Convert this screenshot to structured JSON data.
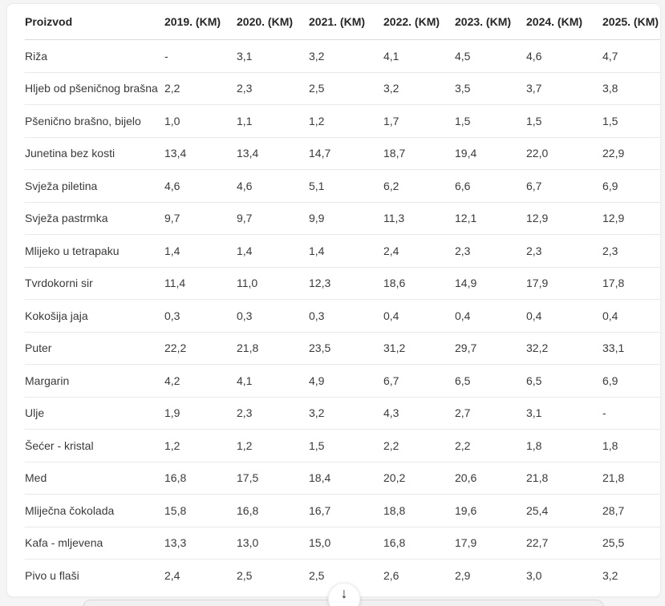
{
  "chart_data": {
    "type": "table",
    "columns": [
      "Proizvod",
      "2019. (KM)",
      "2020. (KM)",
      "2021. (KM)",
      "2022. (KM)",
      "2023. (KM)",
      "2024. (KM)",
      "2025. (KM)"
    ],
    "rows": [
      {
        "product": "Riža",
        "values": [
          "-",
          "3,1",
          "3,2",
          "4,1",
          "4,5",
          "4,6",
          "4,7"
        ]
      },
      {
        "product": "Hljeb od pšeničnog brašna",
        "values": [
          "2,2",
          "2,3",
          "2,5",
          "3,2",
          "3,5",
          "3,7",
          "3,8"
        ]
      },
      {
        "product": "Pšenično brašno, bijelo",
        "values": [
          "1,0",
          "1,1",
          "1,2",
          "1,7",
          "1,5",
          "1,5",
          "1,5"
        ]
      },
      {
        "product": "Junetina bez kosti",
        "values": [
          "13,4",
          "13,4",
          "14,7",
          "18,7",
          "19,4",
          "22,0",
          "22,9"
        ]
      },
      {
        "product": "Svježa piletina",
        "values": [
          "4,6",
          "4,6",
          "5,1",
          "6,2",
          "6,6",
          "6,7",
          "6,9"
        ]
      },
      {
        "product": "Svježa pastrmka",
        "values": [
          "9,7",
          "9,7",
          "9,9",
          "11,3",
          "12,1",
          "12,9",
          "12,9"
        ]
      },
      {
        "product": "Mlijeko u tetrapaku",
        "values": [
          "1,4",
          "1,4",
          "1,4",
          "2,4",
          "2,3",
          "2,3",
          "2,3"
        ]
      },
      {
        "product": "Tvrdokorni sir",
        "values": [
          "11,4",
          "11,0",
          "12,3",
          "18,6",
          "14,9",
          "17,9",
          "17,8"
        ]
      },
      {
        "product": "Kokošija jaja",
        "values": [
          "0,3",
          "0,3",
          "0,3",
          "0,4",
          "0,4",
          "0,4",
          "0,4"
        ]
      },
      {
        "product": "Puter",
        "values": [
          "22,2",
          "21,8",
          "23,5",
          "31,2",
          "29,7",
          "32,2",
          "33,1"
        ]
      },
      {
        "product": "Margarin",
        "values": [
          "4,2",
          "4,1",
          "4,9",
          "6,7",
          "6,5",
          "6,5",
          "6,9"
        ]
      },
      {
        "product": "Ulje",
        "values": [
          "1,9",
          "2,3",
          "3,2",
          "4,3",
          "2,7",
          "3,1",
          "-"
        ]
      },
      {
        "product": "Šećer - kristal",
        "values": [
          "1,2",
          "1,2",
          "1,5",
          "2,2",
          "2,2",
          "1,8",
          "1,8"
        ]
      },
      {
        "product": "Med",
        "values": [
          "16,8",
          "17,5",
          "18,4",
          "20,2",
          "20,6",
          "21,8",
          "21,8"
        ]
      },
      {
        "product": "Mliječna čokolada",
        "values": [
          "15,8",
          "16,8",
          "16,7",
          "18,8",
          "19,6",
          "25,4",
          "28,7"
        ]
      },
      {
        "product": "Kafa - mljevena",
        "values": [
          "13,3",
          "13,0",
          "15,0",
          "16,8",
          "17,9",
          "22,7",
          "25,5"
        ]
      },
      {
        "product": "Pivo u flaši",
        "values": [
          "2,4",
          "2,5",
          "2,5",
          "2,6",
          "2,9",
          "3,0",
          "3,2"
        ]
      }
    ]
  },
  "scroll_button": {
    "icon": "arrow-down",
    "glyph": "↓"
  },
  "colors": {
    "page_bg": "#f5f5f5",
    "card_bg": "#ffffff",
    "card_border": "#ececec",
    "row_divider": "#e9e9e9",
    "header_divider": "#d9d9d9",
    "header_text": "#262626",
    "body_text": "#3a3a3a"
  }
}
